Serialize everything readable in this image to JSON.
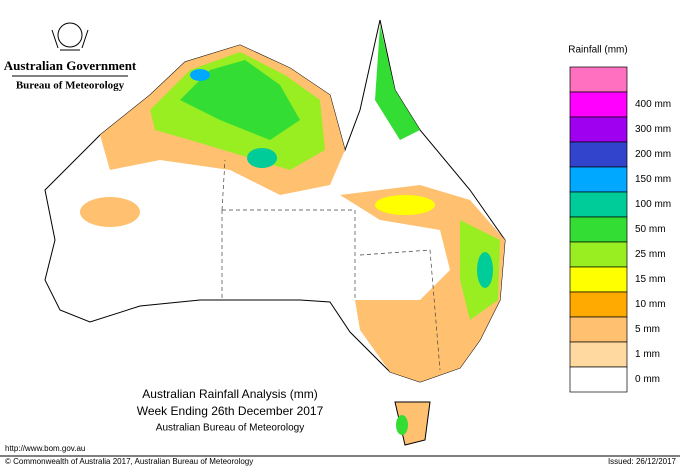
{
  "header": {
    "agency": "Australian Government",
    "bureau": "Bureau of Meteorology"
  },
  "title": {
    "line1": "Australian Rainfall Analysis (mm)",
    "line2": "Week Ending 26th December 2017",
    "line3": "Australian Bureau of Meteorology"
  },
  "legend": {
    "title": "Rainfall (mm)",
    "items": [
      {
        "color": "#ff70c0"
      },
      {
        "label": "400 mm",
        "color": "#ff00ff"
      },
      {
        "label": "300 mm",
        "color": "#a000f0"
      },
      {
        "label": "200 mm",
        "color": "#3344cc"
      },
      {
        "label": "150 mm",
        "color": "#00a8ff"
      },
      {
        "label": "100 mm",
        "color": "#00cc99"
      },
      {
        "label": "50 mm",
        "color": "#33dd33"
      },
      {
        "label": "25 mm",
        "color": "#99ee22"
      },
      {
        "label": "15 mm",
        "color": "#ffff00"
      },
      {
        "label": "10 mm",
        "color": "#ffaa00"
      },
      {
        "label": "5 mm",
        "color": "#ffc070"
      },
      {
        "label": "1 mm",
        "color": "#ffd9a0"
      },
      {
        "label": "0 mm",
        "color": "#ffffff"
      }
    ]
  },
  "footer": {
    "url": "http://www.bom.gov.au",
    "copyright": "© Commonwealth of Australia 2017, Australian Bureau of Meteorology",
    "issued": "Issued: 26/12/2017"
  }
}
